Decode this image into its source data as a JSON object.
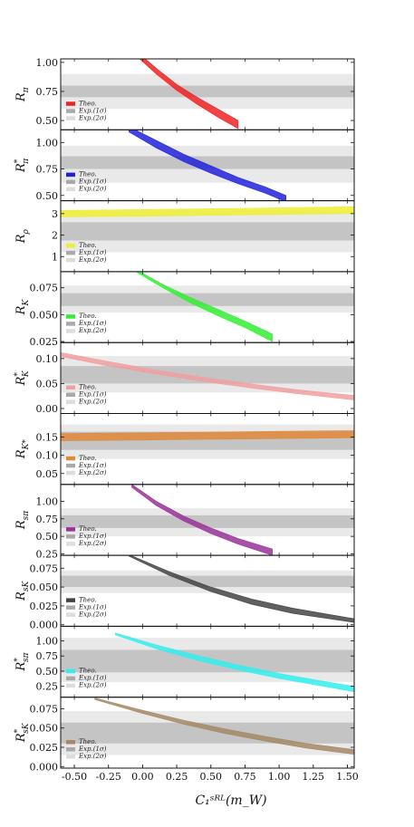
{
  "figure": {
    "xlabel": "C₁ˢᴿᴸ(m_W)",
    "xlim": [
      -0.6,
      1.55
    ],
    "xticks": [
      "-0.50",
      "-0.25",
      "0.00",
      "0.25",
      "0.50",
      "0.75",
      "1.00",
      "1.25",
      "1.50"
    ],
    "xtick_values": [
      -0.5,
      -0.25,
      0.0,
      0.25,
      0.5,
      0.75,
      1.0,
      1.25,
      1.5
    ]
  },
  "chart_data": [
    {
      "type": "area",
      "ylabel": "R_π",
      "ylim": [
        0.42,
        1.03
      ],
      "yticks": [
        {
          "v": 1.0,
          "t": "1.00"
        },
        {
          "v": 0.75,
          "t": "0.75"
        },
        {
          "v": 0.5,
          "t": "0.50"
        }
      ],
      "exp_1sigma": [
        0.7,
        0.8
      ],
      "exp_2sigma": [
        0.6,
        0.9
      ],
      "legend": [
        "Theo.",
        "Exp.(1σ)",
        "Exp.(2σ)"
      ],
      "theory_color": "#ee2222",
      "series": [
        {
          "x": [
            -0.05,
            0.1,
            0.25,
            0.4,
            0.55,
            0.7
          ],
          "low": [
            1.06,
            0.9,
            0.76,
            0.64,
            0.53,
            0.43
          ],
          "high": [
            1.1,
            0.95,
            0.81,
            0.7,
            0.6,
            0.5
          ]
        }
      ]
    },
    {
      "type": "area",
      "ylabel": "R*_π",
      "ylim": [
        0.45,
        1.12
      ],
      "yticks": [
        {
          "v": 1.0,
          "t": "1.00"
        },
        {
          "v": 0.75,
          "t": "0.75"
        },
        {
          "v": 0.5,
          "t": "0.50"
        }
      ],
      "exp_1sigma": [
        0.75,
        0.87
      ],
      "exp_2sigma": [
        0.62,
        0.97
      ],
      "legend": [
        "Theo.",
        "Exp.(1σ)",
        "Exp.(2σ)"
      ],
      "theory_color": "#2222dd",
      "series": [
        {
          "x": [
            -0.1,
            0.1,
            0.3,
            0.5,
            0.7,
            0.9,
            1.05
          ],
          "low": [
            1.1,
            0.95,
            0.82,
            0.71,
            0.61,
            0.52,
            0.44
          ],
          "high": [
            1.15,
            1.02,
            0.89,
            0.78,
            0.67,
            0.58,
            0.5
          ]
        }
      ]
    },
    {
      "type": "area",
      "ylabel": "R_ρ",
      "ylim": [
        0.3,
        3.6
      ],
      "yticks": [
        {
          "v": 3,
          "t": "3"
        },
        {
          "v": 2,
          "t": "2"
        },
        {
          "v": 1,
          "t": "1"
        }
      ],
      "exp_1sigma": [
        1.75,
        2.6
      ],
      "exp_2sigma": [
        1.2,
        3.15
      ],
      "legend": [
        "Theo.",
        "Exp.(1σ)",
        "Exp.(2σ)"
      ],
      "theory_color": "#eeee33",
      "series": [
        {
          "x": [
            -0.6,
            0.0,
            0.5,
            1.0,
            1.55
          ],
          "low": [
            2.85,
            2.88,
            2.92,
            2.96,
            3.0
          ],
          "high": [
            3.15,
            3.19,
            3.23,
            3.27,
            3.32
          ]
        }
      ]
    },
    {
      "type": "area",
      "ylabel": "R_K",
      "ylim": [
        0.024,
        0.09
      ],
      "yticks": [
        {
          "v": 0.075,
          "t": "0.075"
        },
        {
          "v": 0.05,
          "t": "0.050"
        },
        {
          "v": 0.025,
          "t": "0.025"
        }
      ],
      "exp_1sigma": [
        0.058,
        0.07
      ],
      "exp_2sigma": [
        0.052,
        0.077
      ],
      "legend": [
        "Theo.",
        "Exp.(1σ)",
        "Exp.(2σ)"
      ],
      "theory_color": "#33ee33",
      "series": [
        {
          "x": [
            -0.05,
            0.15,
            0.35,
            0.55,
            0.75,
            0.95
          ],
          "low": [
            0.09,
            0.075,
            0.061,
            0.049,
            0.038,
            0.025
          ],
          "high": [
            0.092,
            0.078,
            0.066,
            0.055,
            0.044,
            0.032
          ]
        }
      ]
    },
    {
      "type": "area",
      "ylabel": "R*_K",
      "ylim": [
        -0.01,
        0.132
      ],
      "yticks": [
        {
          "v": 0.1,
          "t": "0.10"
        },
        {
          "v": 0.05,
          "t": "0.05"
        },
        {
          "v": 0.0,
          "t": "0.00"
        }
      ],
      "exp_1sigma": [
        0.05,
        0.085
      ],
      "exp_2sigma": [
        0.032,
        0.105
      ],
      "legend": [
        "Theo.",
        "Exp.(1σ)",
        "Exp.(2σ)"
      ],
      "theory_color": "#f0a0a0",
      "series": [
        {
          "x": [
            -0.6,
            -0.25,
            0.1,
            0.45,
            0.8,
            1.15,
            1.55
          ],
          "low": [
            0.104,
            0.085,
            0.069,
            0.054,
            0.041,
            0.029,
            0.017
          ],
          "high": [
            0.112,
            0.094,
            0.077,
            0.062,
            0.049,
            0.037,
            0.026
          ]
        }
      ]
    },
    {
      "type": "area",
      "ylabel": "R_K*",
      "ylim": [
        0.02,
        0.215
      ],
      "yticks": [
        {
          "v": 0.15,
          "t": "0.15"
        },
        {
          "v": 0.1,
          "t": "0.10"
        },
        {
          "v": 0.05,
          "t": "0.05"
        }
      ],
      "exp_1sigma": [
        0.115,
        0.165
      ],
      "exp_2sigma": [
        0.09,
        0.185
      ],
      "legend": [
        "Theo.",
        "Exp.(1σ)",
        "Exp.(2σ)"
      ],
      "theory_color": "#e08a3a",
      "series": [
        {
          "x": [
            -0.6,
            0.0,
            0.5,
            1.0,
            1.55
          ],
          "low": [
            0.14,
            0.142,
            0.144,
            0.146,
            0.148
          ],
          "high": [
            0.16,
            0.162,
            0.164,
            0.166,
            0.168
          ]
        }
      ]
    },
    {
      "type": "area",
      "ylabel": "R_sπ",
      "ylim": [
        0.23,
        1.24
      ],
      "yticks": [
        {
          "v": 1.0,
          "t": "1.00"
        },
        {
          "v": 0.75,
          "t": "0.75"
        },
        {
          "v": 0.5,
          "t": "0.50"
        },
        {
          "v": 0.25,
          "t": "0.25"
        }
      ],
      "exp_1sigma": [
        0.62,
        0.8
      ],
      "exp_2sigma": [
        0.5,
        0.9
      ],
      "legend": [
        "Theo.",
        "Exp.(1σ)",
        "Exp.(2σ)"
      ],
      "theory_color": "#993399",
      "series": [
        {
          "x": [
            -0.08,
            0.1,
            0.3,
            0.5,
            0.7,
            0.95
          ],
          "low": [
            1.2,
            0.94,
            0.72,
            0.54,
            0.39,
            0.23
          ],
          "high": [
            1.24,
            1.0,
            0.79,
            0.62,
            0.47,
            0.32
          ]
        }
      ]
    },
    {
      "type": "area",
      "ylabel": "R_sK",
      "ylim": [
        -0.002,
        0.092
      ],
      "yticks": [
        {
          "v": 0.075,
          "t": "0.075"
        },
        {
          "v": 0.05,
          "t": "0.050"
        },
        {
          "v": 0.025,
          "t": "0.025"
        },
        {
          "v": 0.0,
          "t": "0.000"
        }
      ],
      "exp_1sigma": [
        0.05,
        0.065
      ],
      "exp_2sigma": [
        0.042,
        0.072
      ],
      "legend": [
        "Theo.",
        "Exp.(1σ)",
        "Exp.(2σ)"
      ],
      "theory_color": "#444444",
      "series": [
        {
          "x": [
            -0.1,
            0.2,
            0.5,
            0.8,
            1.1,
            1.55
          ],
          "low": [
            0.091,
            0.065,
            0.044,
            0.027,
            0.015,
            0.003
          ],
          "high": [
            0.093,
            0.07,
            0.05,
            0.034,
            0.022,
            0.008
          ]
        }
      ]
    },
    {
      "type": "area",
      "ylabel": "R*_sπ",
      "ylim": [
        0.07,
        1.24
      ],
      "yticks": [
        {
          "v": 1.0,
          "t": "1.00"
        },
        {
          "v": 0.75,
          "t": "0.75"
        },
        {
          "v": 0.5,
          "t": "0.50"
        },
        {
          "v": 0.25,
          "t": "0.25"
        }
      ],
      "exp_1sigma": [
        0.48,
        0.85
      ],
      "exp_2sigma": [
        0.32,
        1.05
      ],
      "legend": [
        "Theo.",
        "Exp.(1σ)",
        "Exp.(2σ)"
      ],
      "theory_color": "#33eeee",
      "series": [
        {
          "x": [
            -0.2,
            0.1,
            0.4,
            0.7,
            1.0,
            1.3,
            1.55
          ],
          "low": [
            1.1,
            0.87,
            0.68,
            0.52,
            0.38,
            0.26,
            0.16
          ],
          "high": [
            1.13,
            0.93,
            0.76,
            0.6,
            0.46,
            0.34,
            0.25
          ]
        }
      ]
    },
    {
      "type": "area",
      "ylabel": "R*_sK",
      "ylim": [
        -0.002,
        0.09
      ],
      "yticks": [
        {
          "v": 0.075,
          "t": "0.075"
        },
        {
          "v": 0.05,
          "t": "0.050"
        },
        {
          "v": 0.025,
          "t": "0.025"
        },
        {
          "v": 0.0,
          "t": "0.000"
        }
      ],
      "exp_1sigma": [
        0.03,
        0.057
      ],
      "exp_2sigma": [
        0.015,
        0.072
      ],
      "legend": [
        "Theo.",
        "Exp.(1σ)",
        "Exp.(2σ)"
      ],
      "theory_color": "#a58866",
      "series": [
        {
          "x": [
            -0.35,
            0.0,
            0.3,
            0.6,
            0.9,
            1.2,
            1.55
          ],
          "low": [
            0.087,
            0.069,
            0.055,
            0.043,
            0.033,
            0.024,
            0.016
          ],
          "high": [
            0.089,
            0.073,
            0.06,
            0.049,
            0.039,
            0.03,
            0.022
          ]
        }
      ]
    }
  ]
}
